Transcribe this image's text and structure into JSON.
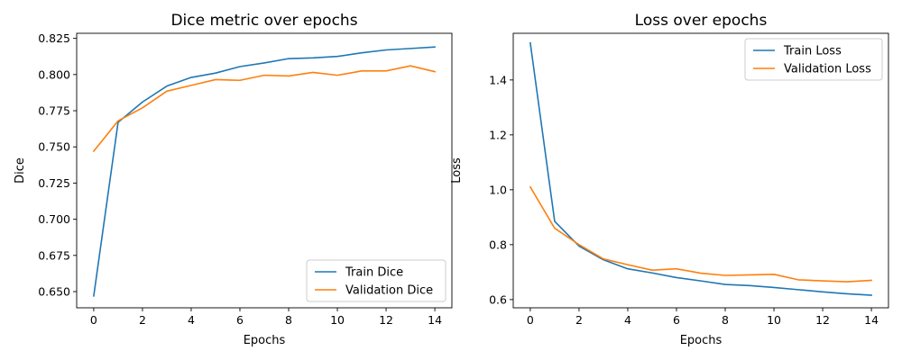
{
  "chart_data": [
    {
      "type": "line",
      "title": "Dice metric over epochs",
      "xlabel": "Epochs",
      "ylabel": "Dice",
      "xlim": [
        -0.7,
        14.7
      ],
      "ylim": [
        0.6388,
        0.8285
      ],
      "xticks": [
        0,
        2,
        4,
        6,
        8,
        10,
        12,
        14
      ],
      "xtick_labels": [
        "0",
        "2",
        "4",
        "6",
        "8",
        "10",
        "12",
        "14"
      ],
      "yticks": [
        0.65,
        0.675,
        0.7,
        0.725,
        0.75,
        0.775,
        0.8,
        0.825
      ],
      "ytick_labels": [
        "0.650",
        "0.675",
        "0.700",
        "0.725",
        "0.750",
        "0.775",
        "0.800",
        "0.825"
      ],
      "legend": "lower-right",
      "grid": false,
      "x": [
        0,
        1,
        2,
        3,
        4,
        5,
        6,
        7,
        8,
        9,
        10,
        11,
        12,
        13,
        14
      ],
      "series": [
        {
          "name": "Train Dice",
          "color": "#1f77b4",
          "values": [
            0.647,
            0.767,
            0.781,
            0.792,
            0.798,
            0.801,
            0.8055,
            0.808,
            0.811,
            0.8115,
            0.8125,
            0.815,
            0.817,
            0.818,
            0.819
          ]
        },
        {
          "name": "Validation Dice",
          "color": "#ff7f0e",
          "values": [
            0.747,
            0.768,
            0.777,
            0.7885,
            0.7925,
            0.7965,
            0.796,
            0.7995,
            0.799,
            0.8015,
            0.7995,
            0.8025,
            0.8025,
            0.806,
            0.802
          ]
        }
      ]
    },
    {
      "type": "line",
      "title": "Loss over epochs",
      "xlabel": "Epochs",
      "ylabel": "Loss",
      "xlim": [
        -0.7,
        14.7
      ],
      "ylim": [
        0.57,
        1.57
      ],
      "xticks": [
        0,
        2,
        4,
        6,
        8,
        10,
        12,
        14
      ],
      "xtick_labels": [
        "0",
        "2",
        "4",
        "6",
        "8",
        "10",
        "12",
        "14"
      ],
      "yticks": [
        0.6,
        0.8,
        1.0,
        1.2,
        1.4
      ],
      "ytick_labels": [
        "0.6",
        "0.8",
        "1.0",
        "1.2",
        "1.4"
      ],
      "legend": "upper-right",
      "grid": false,
      "x": [
        0,
        1,
        2,
        3,
        4,
        5,
        6,
        7,
        8,
        9,
        10,
        11,
        12,
        13,
        14
      ],
      "series": [
        {
          "name": "Train Loss",
          "color": "#1f77b4",
          "values": [
            1.535,
            0.885,
            0.795,
            0.745,
            0.712,
            0.697,
            0.68,
            0.668,
            0.655,
            0.651,
            0.644,
            0.636,
            0.628,
            0.621,
            0.616
          ]
        },
        {
          "name": "Validation Loss",
          "color": "#ff7f0e",
          "values": [
            1.01,
            0.86,
            0.8,
            0.748,
            0.727,
            0.707,
            0.712,
            0.696,
            0.688,
            0.69,
            0.692,
            0.672,
            0.668,
            0.665,
            0.67
          ]
        }
      ]
    }
  ]
}
